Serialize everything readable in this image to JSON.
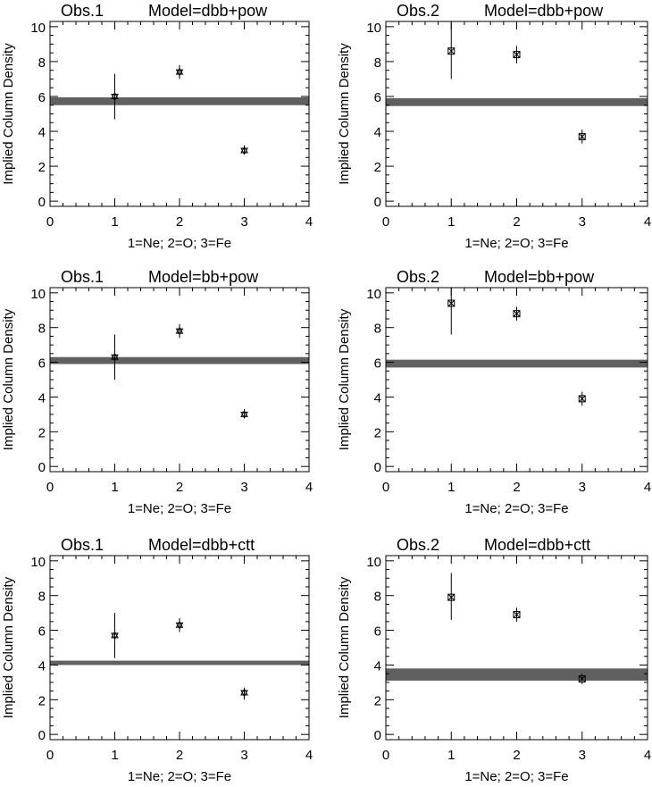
{
  "chart_data": [
    {
      "type": "scatter",
      "title_left": "Obs.1",
      "title_right": "Model=dbb+pow",
      "xlabel": "1=Ne; 2=O; 3=Fe",
      "ylabel": "Implied Column Density",
      "xlim": [
        0,
        4
      ],
      "ylim": [
        -0.3,
        10.3
      ],
      "xticks": [
        "0",
        "1",
        "2",
        "3",
        "4"
      ],
      "yticks": [
        "0",
        "2",
        "4",
        "6",
        "8",
        "10"
      ],
      "marker": "star",
      "points": [
        {
          "x": 1,
          "y": 6.0,
          "ylow": 4.7,
          "yhigh": 7.3
        },
        {
          "x": 2,
          "y": 7.4,
          "ylow": 7.0,
          "yhigh": 7.8
        },
        {
          "x": 3,
          "y": 2.9,
          "ylow": 2.7,
          "yhigh": 3.2
        }
      ],
      "band": [
        5.5,
        5.95
      ]
    },
    {
      "type": "scatter",
      "title_left": "Obs.2",
      "title_right": "Model=dbb+pow",
      "xlabel": "1=Ne; 2=O; 3=Fe",
      "ylabel": "Implied Column Density",
      "xlim": [
        0,
        4
      ],
      "ylim": [
        -0.3,
        10.3
      ],
      "xticks": [
        "0",
        "1",
        "2",
        "3",
        "4"
      ],
      "yticks": [
        "0",
        "2",
        "4",
        "6",
        "8",
        "10"
      ],
      "marker": "box",
      "points": [
        {
          "x": 1,
          "y": 8.6,
          "ylow": 7.0,
          "yhigh": 10.3
        },
        {
          "x": 2,
          "y": 8.4,
          "ylow": 7.9,
          "yhigh": 8.9
        },
        {
          "x": 3,
          "y": 3.7,
          "ylow": 3.3,
          "yhigh": 4.1
        }
      ],
      "band": [
        5.45,
        5.9
      ]
    },
    {
      "type": "scatter",
      "title_left": "Obs.1",
      "title_right": "Model=bb+pow",
      "xlabel": "1=Ne; 2=O; 3=Fe",
      "ylabel": "Implied Column Density",
      "xlim": [
        0,
        4
      ],
      "ylim": [
        -0.3,
        10.3
      ],
      "xticks": [
        "0",
        "1",
        "2",
        "3",
        "4"
      ],
      "yticks": [
        "0",
        "2",
        "4",
        "6",
        "8",
        "10"
      ],
      "marker": "star",
      "points": [
        {
          "x": 1,
          "y": 6.3,
          "ylow": 5.0,
          "yhigh": 7.6
        },
        {
          "x": 2,
          "y": 7.8,
          "ylow": 7.4,
          "yhigh": 8.2
        },
        {
          "x": 3,
          "y": 3.0,
          "ylow": 2.8,
          "yhigh": 3.3
        }
      ],
      "band": [
        5.9,
        6.3
      ]
    },
    {
      "type": "scatter",
      "title_left": "Obs.2",
      "title_right": "Model=bb+pow",
      "xlabel": "1=Ne; 2=O; 3=Fe",
      "ylabel": "Implied Column Density",
      "xlim": [
        0,
        4
      ],
      "ylim": [
        -0.3,
        10.3
      ],
      "xticks": [
        "0",
        "1",
        "2",
        "3",
        "4"
      ],
      "yticks": [
        "0",
        "2",
        "4",
        "6",
        "8",
        "10"
      ],
      "marker": "box",
      "points": [
        {
          "x": 1,
          "y": 9.4,
          "ylow": 7.6,
          "yhigh": 10.3
        },
        {
          "x": 2,
          "y": 8.8,
          "ylow": 8.4,
          "yhigh": 9.2
        },
        {
          "x": 3,
          "y": 3.9,
          "ylow": 3.5,
          "yhigh": 4.3
        }
      ],
      "band": [
        5.7,
        6.15
      ]
    },
    {
      "type": "scatter",
      "title_left": "Obs.1",
      "title_right": "Model=dbb+ctt",
      "xlabel": "1=Ne; 2=O; 3=Fe",
      "ylabel": "Implied Column Density",
      "xlim": [
        0,
        4
      ],
      "ylim": [
        -0.3,
        10.3
      ],
      "xticks": [
        "0",
        "1",
        "2",
        "3",
        "4"
      ],
      "yticks": [
        "0",
        "2",
        "4",
        "6",
        "8",
        "10"
      ],
      "marker": "star",
      "points": [
        {
          "x": 1,
          "y": 5.7,
          "ylow": 4.4,
          "yhigh": 7.0
        },
        {
          "x": 2,
          "y": 6.3,
          "ylow": 5.9,
          "yhigh": 6.7
        },
        {
          "x": 3,
          "y": 2.4,
          "ylow": 2.0,
          "yhigh": 2.7
        }
      ],
      "band": [
        4.0,
        4.25
      ]
    },
    {
      "type": "scatter",
      "title_left": "Obs.2",
      "title_right": "Model=dbb+ctt",
      "xlabel": "1=Ne; 2=O; 3=Fe",
      "ylabel": "Implied Column Density",
      "xlim": [
        0,
        4
      ],
      "ylim": [
        -0.3,
        10.3
      ],
      "xticks": [
        "0",
        "1",
        "2",
        "3",
        "4"
      ],
      "yticks": [
        "0",
        "2",
        "4",
        "6",
        "8",
        "10"
      ],
      "marker": "box",
      "points": [
        {
          "x": 1,
          "y": 7.9,
          "ylow": 6.6,
          "yhigh": 9.3
        },
        {
          "x": 2,
          "y": 6.9,
          "ylow": 6.5,
          "yhigh": 7.3
        },
        {
          "x": 3,
          "y": 3.2,
          "ylow": 2.9,
          "yhigh": 3.5
        }
      ],
      "band": [
        3.1,
        3.8
      ]
    }
  ]
}
